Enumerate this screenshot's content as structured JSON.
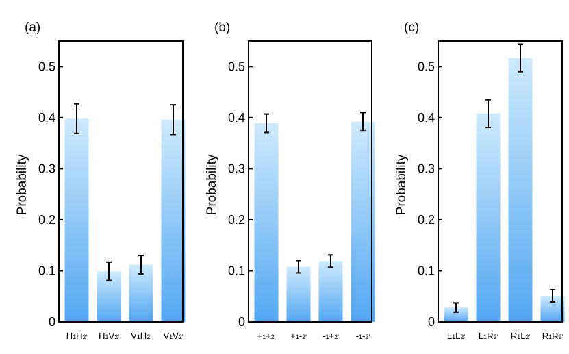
{
  "chart_data": [
    {
      "type": "bar",
      "panel_label": "(a)",
      "ylabel": "Probability",
      "ylim": [
        0,
        0.55
      ],
      "yticks": [
        "0",
        "0.1",
        "0.2",
        "0.3",
        "0.4",
        "0.5"
      ],
      "categories": [
        {
          "parts": [
            [
              "H",
              ""
            ],
            [
              "",
              "1"
            ],
            [
              "H",
              ""
            ],
            [
              "",
              "2′"
            ]
          ]
        },
        {
          "parts": [
            [
              "H",
              ""
            ],
            [
              "",
              "1"
            ],
            [
              "V",
              ""
            ],
            [
              "",
              "2′"
            ]
          ]
        },
        {
          "parts": [
            [
              "V",
              ""
            ],
            [
              "",
              "1"
            ],
            [
              "H",
              ""
            ],
            [
              "",
              "2′"
            ]
          ]
        },
        {
          "parts": [
            [
              "V",
              ""
            ],
            [
              "",
              "1"
            ],
            [
              "V",
              ""
            ],
            [
              "",
              "2′"
            ]
          ]
        }
      ],
      "category_names": [
        "H1H2′",
        "H1V2′",
        "V1H2′",
        "V1V2′"
      ],
      "values": [
        0.398,
        0.099,
        0.112,
        0.396
      ],
      "errors": [
        0.029,
        0.018,
        0.018,
        0.029
      ]
    },
    {
      "type": "bar",
      "panel_label": "(b)",
      "ylabel": "Probability",
      "ylim": [
        0,
        0.55
      ],
      "yticks": [
        "0",
        "0.1",
        "0.2",
        "0.3",
        "0.4",
        "0.5"
      ],
      "categories": [
        {
          "parts": [
            [
              "+",
              ""
            ],
            [
              "",
              "1"
            ],
            [
              "+",
              ""
            ],
            [
              "",
              "2′"
            ]
          ]
        },
        {
          "parts": [
            [
              "+",
              ""
            ],
            [
              "",
              "1"
            ],
            [
              "-",
              ""
            ],
            [
              "",
              "2′"
            ]
          ]
        },
        {
          "parts": [
            [
              "-",
              ""
            ],
            [
              "",
              "1"
            ],
            [
              "+",
              ""
            ],
            [
              "",
              "2′"
            ]
          ]
        },
        {
          "parts": [
            [
              "-",
              ""
            ],
            [
              "",
              "1"
            ],
            [
              "-",
              ""
            ],
            [
              "",
              "2′"
            ]
          ]
        }
      ],
      "category_names": [
        "+1+2′",
        "+1-2′",
        "-1+2′",
        "-1-2′"
      ],
      "values": [
        0.389,
        0.108,
        0.119,
        0.392
      ],
      "errors": [
        0.018,
        0.012,
        0.012,
        0.018
      ]
    },
    {
      "type": "bar",
      "panel_label": "(c)",
      "ylabel": "Probability",
      "ylim": [
        0,
        0.55
      ],
      "yticks": [
        "0",
        "0.1",
        "0.2",
        "0.3",
        "0.4",
        "0.5"
      ],
      "categories": [
        {
          "parts": [
            [
              "L",
              ""
            ],
            [
              "",
              "1"
            ],
            [
              "L",
              ""
            ],
            [
              "",
              "2′"
            ]
          ]
        },
        {
          "parts": [
            [
              "L",
              ""
            ],
            [
              "",
              "1"
            ],
            [
              "R",
              ""
            ],
            [
              "",
              "2′"
            ]
          ]
        },
        {
          "parts": [
            [
              "R",
              ""
            ],
            [
              "",
              "1"
            ],
            [
              "L",
              ""
            ],
            [
              "",
              "2′"
            ]
          ]
        },
        {
          "parts": [
            [
              "R",
              ""
            ],
            [
              "",
              "1"
            ],
            [
              "R",
              ""
            ],
            [
              "",
              "2′"
            ]
          ]
        }
      ],
      "category_names": [
        "L1L2′",
        "L1R2′",
        "R1L2′",
        "R1R2′"
      ],
      "values": [
        0.028,
        0.408,
        0.517,
        0.051
      ],
      "errors": [
        0.009,
        0.027,
        0.027,
        0.012
      ]
    }
  ],
  "colors": {
    "bar_top": "#cfeafc",
    "bar_bottom": "#52a7f2",
    "axis": "#000000"
  }
}
